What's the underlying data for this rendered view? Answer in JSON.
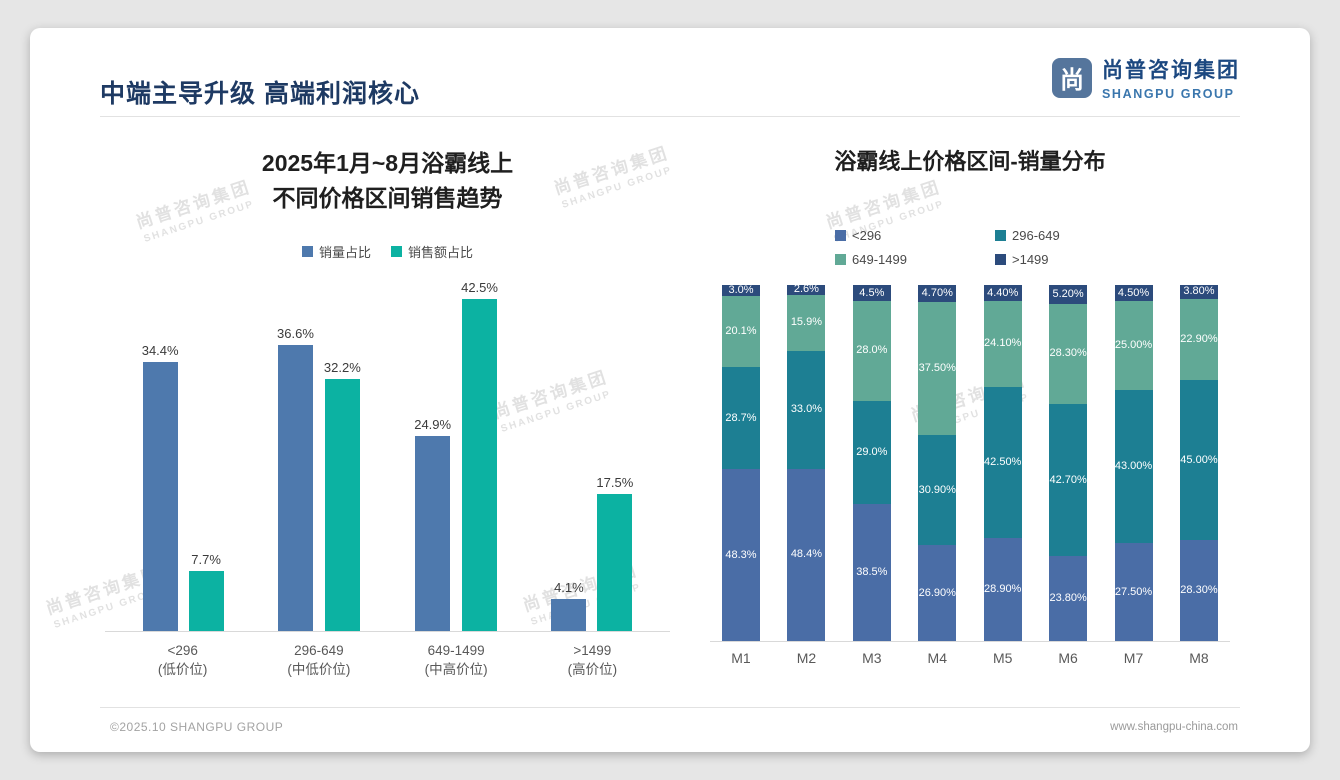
{
  "header": {
    "title": "中端主导升级 高端利润核心",
    "brand_cn": "尚普咨询集团",
    "brand_en": "SHANGPU GROUP",
    "brand_icon_glyph": "尚"
  },
  "watermark": {
    "line1": "尚普咨询集团",
    "line2": "SHANGPU GROUP"
  },
  "footer": {
    "left": "©2025.10 SHANGPU GROUP",
    "right": "www.shangpu-china.com"
  },
  "colors": {
    "header_navy": "#1e3a63",
    "volume_blue": "#4e79ad",
    "sales_teal": "#0cb2a2",
    "stack_lt296": "#4a6da6",
    "stack_296_649": "#1d7f93",
    "stack_649_1499": "#61a996",
    "stack_gt1499": "#2c4b7c"
  },
  "chart_data": [
    {
      "type": "bar",
      "title_lines": [
        "2025年1月~8月浴霸线上",
        "不同价格区间销售趋势"
      ],
      "categories": [
        "<296",
        "296-649",
        "649-1499",
        ">1499"
      ],
      "category_sublabels": [
        "(低价位)",
        "(中低价位)",
        "(中高价位)",
        "(高价位)"
      ],
      "series": [
        {
          "name": "销量占比",
          "color": "#4e79ad",
          "values": [
            34.4,
            36.6,
            24.9,
            4.1
          ]
        },
        {
          "name": "销售额占比",
          "color": "#0cb2a2",
          "values": [
            7.7,
            32.2,
            42.5,
            17.5
          ]
        }
      ],
      "value_suffix": "%",
      "ylim": [
        0,
        45
      ],
      "grid": false,
      "legend_position": "top"
    },
    {
      "type": "bar",
      "subtype": "stacked",
      "title": "浴霸线上价格区间-销量分布",
      "categories": [
        "M1",
        "M2",
        "M3",
        "M4",
        "M5",
        "M6",
        "M7",
        "M8"
      ],
      "stack_order": "first-series-at-bottom",
      "series": [
        {
          "name": "<296",
          "color": "#4a6da6",
          "values": [
            48.3,
            48.4,
            38.5,
            26.9,
            28.9,
            23.8,
            27.5,
            28.3
          ],
          "labels": [
            "48.3%",
            "48.4%",
            "38.5%",
            "26.90%",
            "28.90%",
            "23.80%",
            "27.50%",
            "28.30%"
          ]
        },
        {
          "name": "296-649",
          "color": "#1d7f93",
          "values": [
            28.7,
            33.0,
            29.0,
            30.9,
            42.5,
            42.7,
            43.0,
            45.0
          ],
          "labels": [
            "28.7%",
            "33.0%",
            "29.0%",
            "30.90%",
            "42.50%",
            "42.70%",
            "43.00%",
            "45.00%"
          ]
        },
        {
          "name": "649-1499",
          "color": "#61a996",
          "values": [
            20.1,
            15.9,
            28.0,
            37.5,
            24.1,
            28.3,
            25.0,
            22.9
          ],
          "labels": [
            "20.1%",
            "15.9%",
            "28.0%",
            "37.50%",
            "24.10%",
            "28.30%",
            "25.00%",
            "22.90%"
          ]
        },
        {
          "name": ">1499",
          "color": "#2c4b7c",
          "values": [
            3.0,
            2.6,
            4.5,
            4.7,
            4.4,
            5.2,
            4.5,
            3.8
          ],
          "labels": [
            "3.0%",
            "2.6%",
            "4.5%",
            "4.70%",
            "4.40%",
            "5.20%",
            "4.50%",
            "3.80%"
          ]
        }
      ],
      "ylim": [
        0,
        100
      ],
      "grid": false,
      "legend_position": "top"
    }
  ]
}
